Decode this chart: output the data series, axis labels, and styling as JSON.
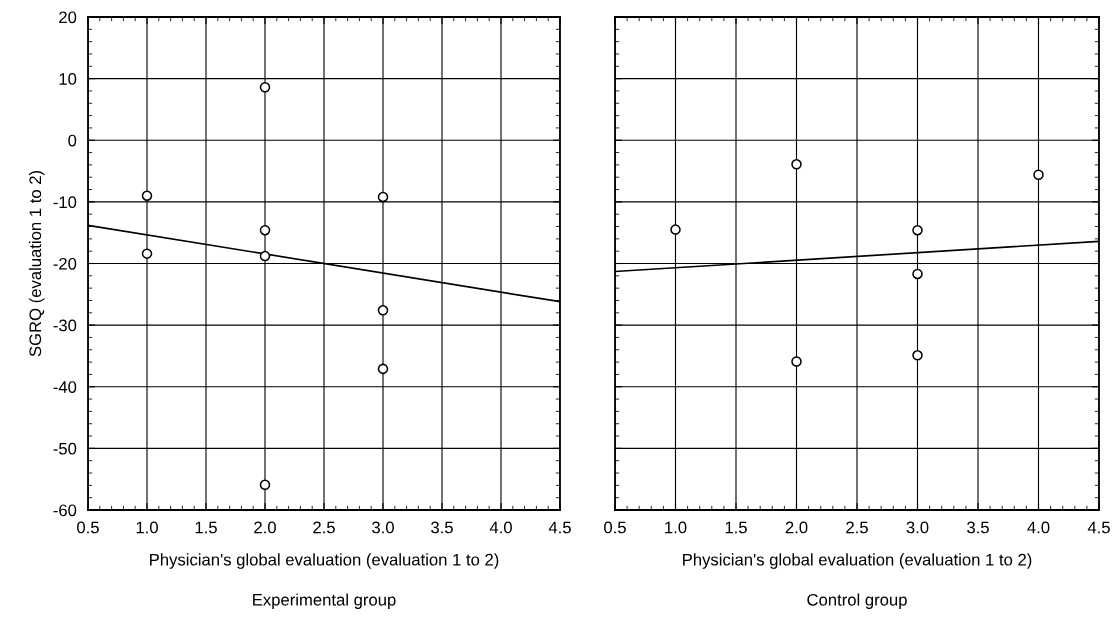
{
  "chart_data": [
    {
      "type": "scatter",
      "xlabel": "Physician's global evaluation (evaluation 1 to 2)",
      "ylabel": "SGRQ (evaluation 1 to 2)",
      "annotations": [
        "Experimental group"
      ],
      "xlim": [
        0.5,
        4.5
      ],
      "ylim": [
        -60,
        20
      ],
      "xticks": [
        {
          "value": 0.5,
          "label": "0.5"
        },
        {
          "value": 1.0,
          "label": "1.0"
        },
        {
          "value": 1.5,
          "label": "1.5"
        },
        {
          "value": 2.0,
          "label": "2.0"
        },
        {
          "value": 2.5,
          "label": "2.5"
        },
        {
          "value": 3.0,
          "label": "3.0"
        },
        {
          "value": 3.5,
          "label": "3.5"
        },
        {
          "value": 4.0,
          "label": "4.0"
        },
        {
          "value": 4.5,
          "label": "4.5"
        }
      ],
      "yticks": [
        -60,
        -50,
        -40,
        -30,
        -20,
        -10,
        0,
        10,
        20
      ],
      "grid": true,
      "series": [
        {
          "color": "#000000",
          "marker": "circle",
          "x": [
            1,
            1,
            2,
            2,
            2,
            2,
            3,
            3,
            3
          ],
          "values": [
            -9.0,
            -18.4,
            8.6,
            -14.6,
            -18.8,
            -55.9,
            -9.2,
            -27.6,
            -37.1
          ]
        },
        {
          "type": "line",
          "color": "#000000",
          "x": [
            0.5,
            4.5
          ],
          "values": [
            -13.8,
            -26.2
          ]
        }
      ]
    },
    {
      "type": "scatter",
      "xlabel": "Physician's global evaluation (evaluation 1 to 2)",
      "annotations": [
        "Control group"
      ],
      "xlim": [
        0.5,
        4.5
      ],
      "ylim": [
        -60,
        20
      ],
      "xticks": [
        {
          "value": 0.5,
          "label": "0.5"
        },
        {
          "value": 1.0,
          "label": "1.0"
        },
        {
          "value": 1.5,
          "label": "1.5"
        },
        {
          "value": 2.0,
          "label": "2.0"
        },
        {
          "value": 2.5,
          "label": "2.5"
        },
        {
          "value": 3.0,
          "label": "3.0"
        },
        {
          "value": 3.5,
          "label": "3.5"
        },
        {
          "value": 4.0,
          "label": "4.0"
        },
        {
          "value": 4.5,
          "label": "4.5"
        }
      ],
      "yticks": [
        -60,
        -50,
        -40,
        -30,
        -20,
        -10,
        0,
        10,
        20
      ],
      "tick_labels": "x",
      "grid": true,
      "series": [
        {
          "color": "#000000",
          "marker": "circle",
          "x": [
            1,
            2,
            2,
            3,
            3,
            3,
            4
          ],
          "values": [
            -14.5,
            -3.9,
            -35.9,
            -14.6,
            -21.7,
            -34.9,
            -5.6
          ]
        },
        {
          "type": "line",
          "color": "#000000",
          "x": [
            0.5,
            4.5
          ],
          "values": [
            -21.3,
            -16.4
          ]
        }
      ]
    }
  ]
}
